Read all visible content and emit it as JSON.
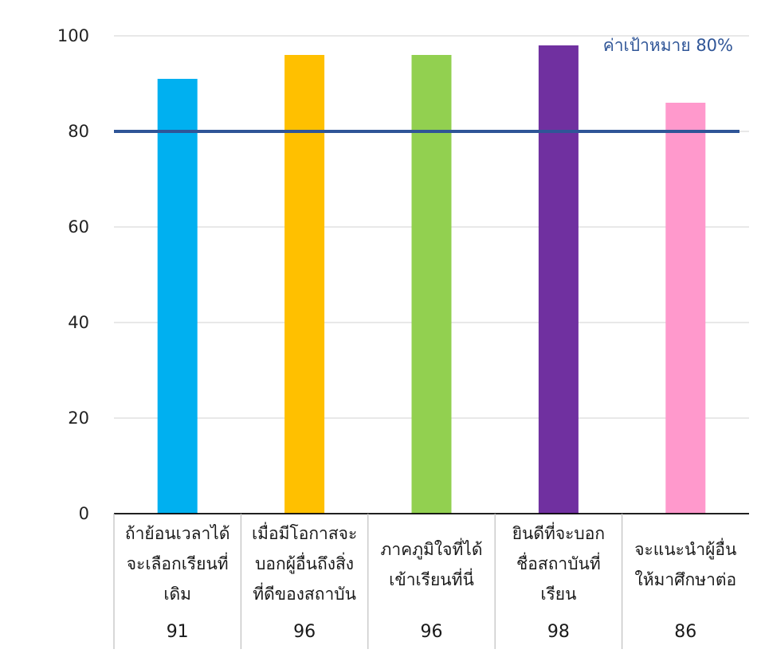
{
  "chart_data": {
    "type": "bar",
    "title": "",
    "xlabel": "",
    "ylabel": "",
    "ylim": [
      0,
      100
    ],
    "yticks": [
      0,
      20,
      40,
      60,
      80,
      100
    ],
    "grid": true,
    "categories": [
      [
        "ถ้าย้อนเวลาได้",
        "จะเลือกเรียนที่",
        "เดิม"
      ],
      [
        "เมื่อมีโอกาสจะ",
        "บอกผู้อื่นถึงสิ่ง",
        "ที่ดีของสถาบัน"
      ],
      [
        "ภาคภูมิใจที่ได้",
        "เข้าเรียนที่นี่"
      ],
      [
        "ยินดีที่จะบอก",
        "ชื่อสถาบันที่",
        "เรียน"
      ],
      [
        "จะแนะนำผู้อื่น",
        "ให้มาศึกษาต่อ"
      ]
    ],
    "values": [
      91,
      96,
      96,
      98,
      86
    ],
    "bar_colors": [
      "#00b0f0",
      "#ffc000",
      "#92d050",
      "#7030a0",
      "#ff99cc"
    ],
    "target": {
      "value": 80,
      "label": "ค่าเป้าหมาย 80%",
      "color": "#2f5597"
    },
    "data_table": true
  }
}
